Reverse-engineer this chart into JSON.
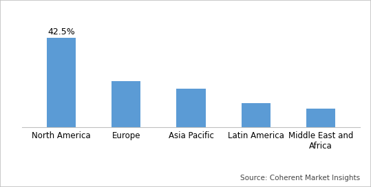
{
  "categories": [
    "North America",
    "Europe",
    "Asia Pacific",
    "Latin America",
    "Middle East and\nAfrica"
  ],
  "values": [
    42.5,
    22.0,
    18.5,
    11.5,
    9.0
  ],
  "bar_color": "#5b9bd5",
  "annotation_label": "42.5%",
  "ylim": [
    0,
    50
  ],
  "source_text": "Source: Coherent Market Insights",
  "background_color": "#ffffff",
  "bar_width": 0.45,
  "label_fontsize": 8.5,
  "annotation_fontsize": 9,
  "source_fontsize": 7.5,
  "border_color": "#c0c0c0"
}
